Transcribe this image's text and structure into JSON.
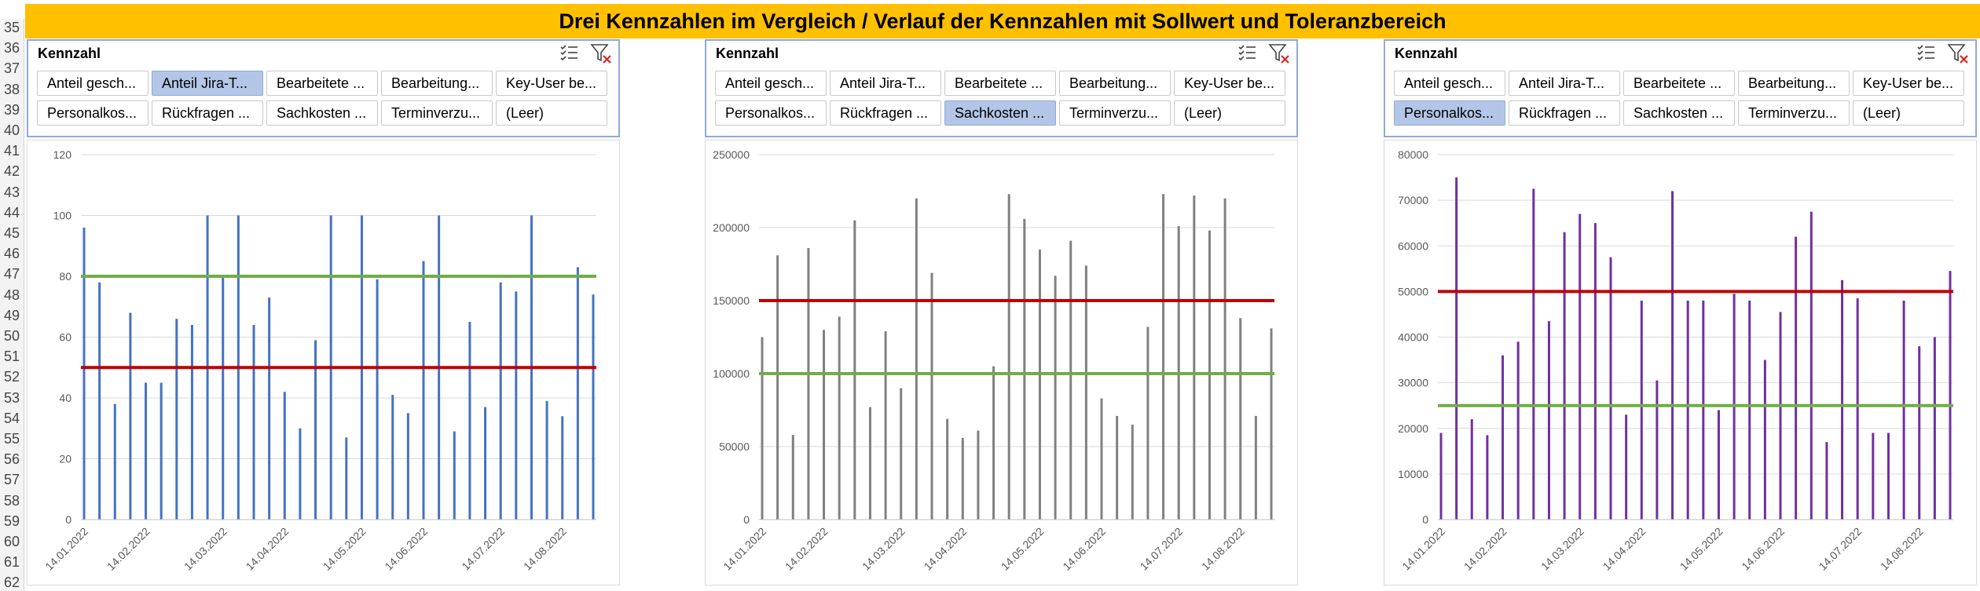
{
  "title": "Drei Kennzahlen im Vergleich / Verlauf der Kennzahlen mit Sollwert und Toleranzbereich",
  "row_numbers": [
    "35",
    "36",
    "37",
    "38",
    "39",
    "40",
    "41",
    "42",
    "43",
    "44",
    "45",
    "46",
    "47",
    "48",
    "49",
    "50",
    "51",
    "52",
    "53",
    "54",
    "55",
    "56",
    "57",
    "58",
    "59",
    "60",
    "61",
    "62"
  ],
  "slicers": [
    {
      "header": "Kennzahl",
      "buttons": [
        "Anteil gesch...",
        "Anteil Jira-T...",
        "Bearbeitete ...",
        "Bearbeitung...",
        "Key-User be...",
        "Personalkos...",
        "Rückfragen ...",
        "Sachkosten ...",
        "Terminverzu...",
        "(Leer)"
      ],
      "selected": 1
    },
    {
      "header": "Kennzahl",
      "buttons": [
        "Anteil gesch...",
        "Anteil Jira-T...",
        "Bearbeitete ...",
        "Bearbeitung...",
        "Key-User be...",
        "Personalkos...",
        "Rückfragen ...",
        "Sachkosten ...",
        "Terminverzu...",
        "(Leer)"
      ],
      "selected": 7
    },
    {
      "header": "Kennzahl",
      "buttons": [
        "Anteil gesch...",
        "Anteil Jira-T...",
        "Bearbeitete ...",
        "Bearbeitung...",
        "Key-User be...",
        "Personalkos...",
        "Rückfragen ...",
        "Sachkosten ...",
        "Terminverzu...",
        "(Leer)"
      ],
      "selected": 5
    }
  ],
  "icons": {
    "multi_select": "multi-select-icon",
    "clear_filter": "clear-filter-icon"
  },
  "chart_data": [
    {
      "type": "bar",
      "bar_color": "#4472c4",
      "ylim": [
        0,
        120
      ],
      "yticks": [
        "0",
        "20",
        "40",
        "60",
        "80",
        "100",
        "120"
      ],
      "xtick_labels": [
        "14.01.2022",
        "14.02.2022",
        "14.03.2022",
        "14.04.2022",
        "14.05.2022",
        "14.06.2022",
        "14.07.2022",
        "14.08.2022"
      ],
      "xtick_index": [
        0,
        4,
        9,
        13,
        18,
        22,
        27,
        31
      ],
      "values": [
        96,
        78,
        38,
        68,
        45,
        45,
        66,
        64,
        100,
        80,
        100,
        64,
        73,
        42,
        30,
        59,
        100,
        27,
        100,
        79,
        41,
        35,
        85,
        100,
        29,
        65,
        37,
        78,
        75,
        100,
        39,
        34,
        83,
        74
      ],
      "lines": [
        {
          "value": 80,
          "color": "#70ad47"
        },
        {
          "value": 50,
          "color": "#c00000"
        }
      ]
    },
    {
      "type": "bar",
      "bar_color": "#808080",
      "ylim": [
        0,
        250000
      ],
      "yticks": [
        "0",
        "50000",
        "100000",
        "150000",
        "200000",
        "250000"
      ],
      "xtick_labels": [
        "14.01.2022",
        "14.02.2022",
        "14.03.2022",
        "14.04.2022",
        "14.05.2022",
        "14.06.2022",
        "14.07.2022",
        "14.08.2022"
      ],
      "xtick_index": [
        0,
        4,
        9,
        13,
        18,
        22,
        27,
        31
      ],
      "values": [
        125000,
        181000,
        58000,
        186000,
        130000,
        139000,
        205000,
        77000,
        129000,
        90000,
        220000,
        169000,
        69000,
        56000,
        61000,
        105000,
        223000,
        206000,
        185000,
        167000,
        191000,
        174000,
        83000,
        71000,
        65000,
        132000,
        223000,
        201000,
        222000,
        198000,
        220000,
        138000,
        71000,
        131000
      ],
      "lines": [
        {
          "value": 150000,
          "color": "#c00000"
        },
        {
          "value": 100000,
          "color": "#70ad47"
        }
      ]
    },
    {
      "type": "bar",
      "bar_color": "#7030a0",
      "ylim": [
        0,
        80000
      ],
      "yticks": [
        "0",
        "10000",
        "20000",
        "30000",
        "40000",
        "50000",
        "60000",
        "70000",
        "80000"
      ],
      "xtick_labels": [
        "14.01.2022",
        "14.02.2022",
        "14.03.2022",
        "14.04.2022",
        "14.05.2022",
        "14.06.2022",
        "14.07.2022",
        "14.08.2022"
      ],
      "xtick_index": [
        0,
        4,
        9,
        13,
        18,
        22,
        27,
        31
      ],
      "values": [
        19000,
        75000,
        22000,
        18500,
        36000,
        39000,
        72500,
        43500,
        63000,
        67000,
        65000,
        57500,
        23000,
        48000,
        30500,
        72000,
        48000,
        48000,
        24000,
        49500,
        48000,
        35000,
        45500,
        62000,
        67500,
        17000,
        52500,
        48500,
        19000,
        19000,
        48000,
        38000,
        40000,
        54500
      ],
      "lines": [
        {
          "value": 50000,
          "color": "#c00000"
        },
        {
          "value": 25000,
          "color": "#70ad47"
        }
      ]
    }
  ]
}
